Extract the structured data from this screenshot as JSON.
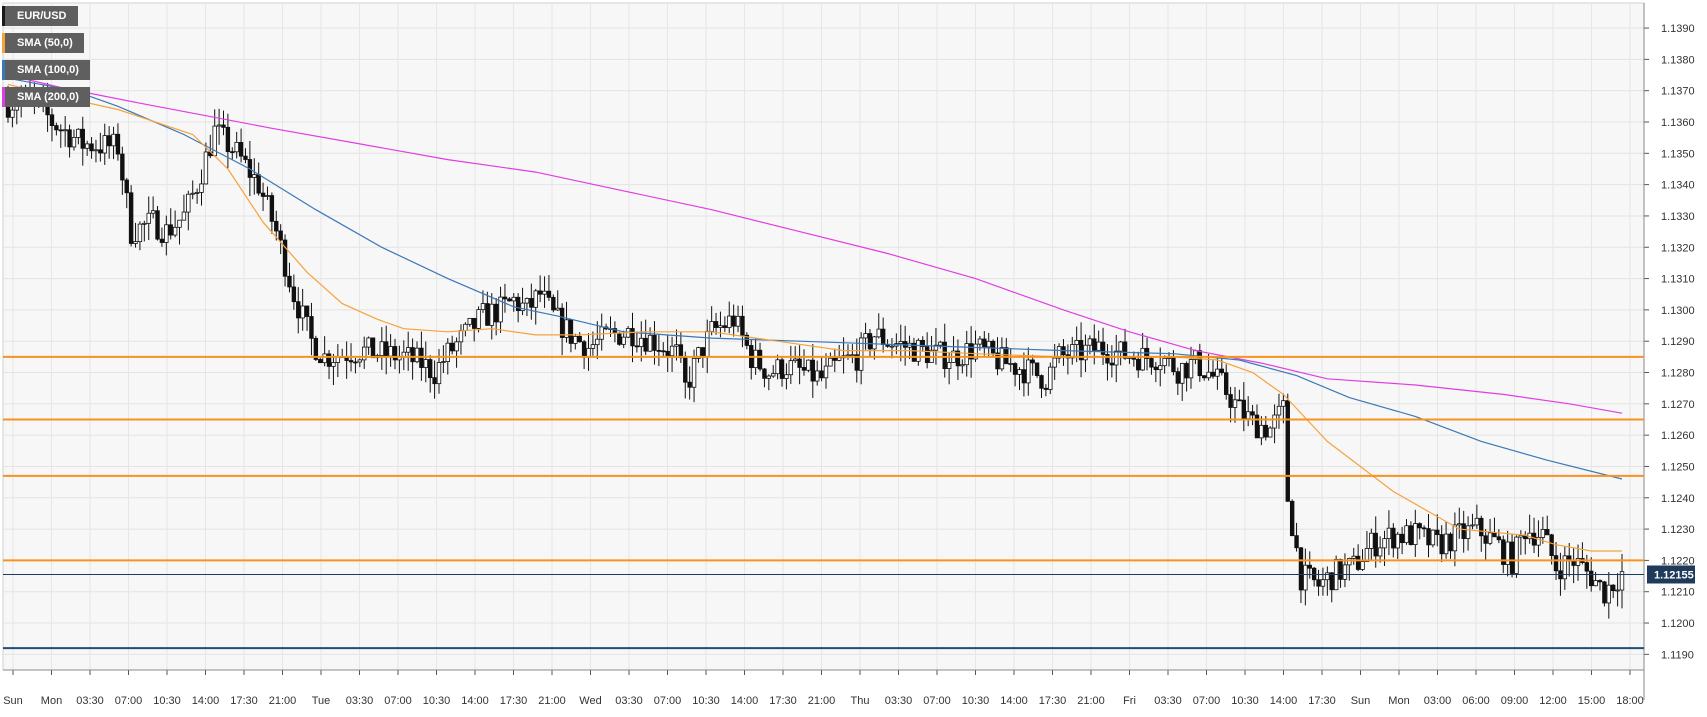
{
  "chart_data": {
    "type": "candlestick",
    "symbol": "EUR/USD",
    "last_price": 1.12155,
    "last_price_label": "1.12155",
    "yaxis": {
      "min": 1.1185,
      "max": 1.1398,
      "ticks": [
        "1.1190",
        "1.1200",
        "1.1210",
        "1.1220",
        "1.1230",
        "1.1240",
        "1.1250",
        "1.1260",
        "1.1270",
        "1.1280",
        "1.1290",
        "1.1300",
        "1.1310",
        "1.1320",
        "1.1330",
        "1.1340",
        "1.1350",
        "1.1360",
        "1.1370",
        "1.1380",
        "1.1390"
      ]
    },
    "xaxis": {
      "ticks": [
        "Sun",
        "Mon",
        "03:30",
        "07:00",
        "10:30",
        "14:00",
        "17:30",
        "21:00",
        "Tue",
        "03:30",
        "07:00",
        "10:30",
        "14:00",
        "17:30",
        "21:00",
        "Wed",
        "03:30",
        "07:00",
        "10:30",
        "14:00",
        "17:30",
        "21:00",
        "Thu",
        "03:30",
        "07:00",
        "10:30",
        "14:00",
        "17:30",
        "21:00",
        "Fri",
        "03:30",
        "07:00",
        "10:30",
        "14:00",
        "17:30",
        "Sun",
        "Mon",
        "03:00",
        "06:00",
        "09:00",
        "12:00",
        "15:00",
        "18:00"
      ]
    },
    "legend": [
      {
        "label": "EUR/USD",
        "color": "#1a1a1a"
      },
      {
        "label": "SMA (50,0)",
        "color": "#f7a23b"
      },
      {
        "label": "SMA (100,0)",
        "color": "#3a78b8"
      },
      {
        "label": "SMA (200,0)",
        "color": "#e23de2"
      }
    ],
    "horizontal_levels": [
      {
        "value": 1.1285,
        "color": "#f7931e"
      },
      {
        "value": 1.1265,
        "color": "#f7931e"
      },
      {
        "value": 1.1247,
        "color": "#f7931e"
      },
      {
        "value": 1.122,
        "color": "#f7931e"
      },
      {
        "value": 1.1192,
        "color": "#1f4e79"
      }
    ],
    "price_path": [
      [
        0,
        1.1366
      ],
      [
        5,
        1.1368
      ],
      [
        10,
        1.136
      ],
      [
        17,
        1.1353
      ],
      [
        25,
        1.1352
      ],
      [
        28,
        1.1325
      ],
      [
        33,
        1.1328
      ],
      [
        36,
        1.1325
      ],
      [
        40,
        1.133
      ],
      [
        43,
        1.134
      ],
      [
        47,
        1.1357
      ],
      [
        52,
        1.135
      ],
      [
        57,
        1.134
      ],
      [
        61,
        1.1325
      ],
      [
        65,
        1.1305
      ],
      [
        69,
        1.129
      ],
      [
        72,
        1.1285
      ],
      [
        80,
        1.1287
      ],
      [
        90,
        1.1285
      ],
      [
        94,
        1.1283
      ],
      [
        97,
        1.128
      ],
      [
        100,
        1.1286
      ],
      [
        104,
        1.1292
      ],
      [
        108,
        1.1298
      ],
      [
        112,
        1.13
      ],
      [
        115,
        1.1303
      ],
      [
        118,
        1.13
      ],
      [
        121,
        1.1305
      ],
      [
        124,
        1.1298
      ],
      [
        128,
        1.1292
      ],
      [
        132,
        1.1288
      ],
      [
        137,
        1.1292
      ],
      [
        142,
        1.1293
      ],
      [
        147,
        1.129
      ],
      [
        152,
        1.1286
      ],
      [
        154,
        1.1275
      ],
      [
        157,
        1.1285
      ],
      [
        160,
        1.1293
      ],
      [
        165,
        1.1297
      ],
      [
        169,
        1.1285
      ],
      [
        173,
        1.128
      ],
      [
        177,
        1.1282
      ],
      [
        181,
        1.128
      ],
      [
        185,
        1.1278
      ],
      [
        189,
        1.1283
      ],
      [
        193,
        1.1285
      ],
      [
        197,
        1.1292
      ],
      [
        200,
        1.129
      ],
      [
        205,
        1.1288
      ],
      [
        210,
        1.1286
      ],
      [
        215,
        1.1285
      ],
      [
        220,
        1.1288
      ],
      [
        225,
        1.1284
      ],
      [
        229,
        1.1282
      ],
      [
        233,
        1.128
      ],
      [
        236,
        1.1278
      ],
      [
        239,
        1.1285
      ],
      [
        243,
        1.1286
      ],
      [
        248,
        1.1288
      ],
      [
        253,
        1.1286
      ],
      [
        258,
        1.1285
      ],
      [
        262,
        1.1285
      ],
      [
        266,
        1.1281
      ],
      [
        270,
        1.1283
      ],
      [
        273,
        1.128
      ],
      [
        276,
        1.1276
      ],
      [
        280,
        1.1268
      ],
      [
        283,
        1.1264
      ],
      [
        287,
        1.1262
      ],
      [
        290,
        1.1268
      ],
      [
        291,
        1.124
      ],
      [
        294,
        1.1215
      ],
      [
        298,
        1.1212
      ],
      [
        302,
        1.1216
      ],
      [
        306,
        1.1218
      ],
      [
        310,
        1.1225
      ],
      [
        315,
        1.1228
      ],
      [
        320,
        1.1228
      ],
      [
        325,
        1.1225
      ],
      [
        330,
        1.1228
      ],
      [
        334,
        1.123
      ],
      [
        338,
        1.1226
      ],
      [
        342,
        1.122
      ],
      [
        345,
        1.123
      ],
      [
        349,
        1.1228
      ],
      [
        352,
        1.1218
      ],
      [
        356,
        1.122
      ],
      [
        360,
        1.1215
      ],
      [
        363,
        1.121
      ],
      [
        365,
        1.1213
      ],
      [
        367,
        1.1216
      ]
    ],
    "sma50": [
      [
        0,
        1.1372
      ],
      [
        12,
        1.1368
      ],
      [
        25,
        1.1364
      ],
      [
        42,
        1.1356
      ],
      [
        50,
        1.1345
      ],
      [
        58,
        1.1328
      ],
      [
        68,
        1.1312
      ],
      [
        76,
        1.1302
      ],
      [
        84,
        1.1297
      ],
      [
        90,
        1.1294
      ],
      [
        100,
        1.1293
      ],
      [
        110,
        1.1294
      ],
      [
        120,
        1.1292
      ],
      [
        130,
        1.1292
      ],
      [
        145,
        1.1293
      ],
      [
        160,
        1.1293
      ],
      [
        175,
        1.129
      ],
      [
        190,
        1.1287
      ],
      [
        205,
        1.1287
      ],
      [
        220,
        1.1286
      ],
      [
        240,
        1.1285
      ],
      [
        265,
        1.1285
      ],
      [
        275,
        1.1284
      ],
      [
        283,
        1.128
      ],
      [
        290,
        1.1273
      ],
      [
        300,
        1.1258
      ],
      [
        315,
        1.1242
      ],
      [
        330,
        1.123
      ],
      [
        345,
        1.1228
      ],
      [
        352,
        1.1225
      ],
      [
        360,
        1.1223
      ],
      [
        367,
        1.1223
      ]
    ],
    "sma100": [
      [
        0,
        1.1374
      ],
      [
        15,
        1.137
      ],
      [
        25,
        1.1365
      ],
      [
        40,
        1.1356
      ],
      [
        55,
        1.1345
      ],
      [
        70,
        1.1332
      ],
      [
        85,
        1.132
      ],
      [
        100,
        1.131
      ],
      [
        115,
        1.1301
      ],
      [
        125,
        1.1298
      ],
      [
        140,
        1.1293
      ],
      [
        160,
        1.1291
      ],
      [
        180,
        1.129
      ],
      [
        200,
        1.1289
      ],
      [
        220,
        1.1288
      ],
      [
        240,
        1.1287
      ],
      [
        265,
        1.1286
      ],
      [
        280,
        1.1284
      ],
      [
        293,
        1.1279
      ],
      [
        305,
        1.1272
      ],
      [
        320,
        1.1266
      ],
      [
        335,
        1.1258
      ],
      [
        350,
        1.1252
      ],
      [
        367,
        1.1246
      ]
    ],
    "sma200": [
      [
        0,
        1.1375
      ],
      [
        12,
        1.1371
      ],
      [
        30,
        1.1366
      ],
      [
        45,
        1.1362
      ],
      [
        60,
        1.1358
      ],
      [
        80,
        1.1353
      ],
      [
        100,
        1.1348
      ],
      [
        120,
        1.1344
      ],
      [
        140,
        1.1338
      ],
      [
        160,
        1.1332
      ],
      [
        180,
        1.1325
      ],
      [
        200,
        1.1318
      ],
      [
        220,
        1.131
      ],
      [
        240,
        1.13
      ],
      [
        255,
        1.1293
      ],
      [
        270,
        1.1287
      ],
      [
        285,
        1.1283
      ],
      [
        300,
        1.1278
      ],
      [
        320,
        1.1276
      ],
      [
        340,
        1.1273
      ],
      [
        355,
        1.127
      ],
      [
        367,
        1.1267
      ]
    ],
    "grid": true,
    "legend_position": "top-left"
  }
}
